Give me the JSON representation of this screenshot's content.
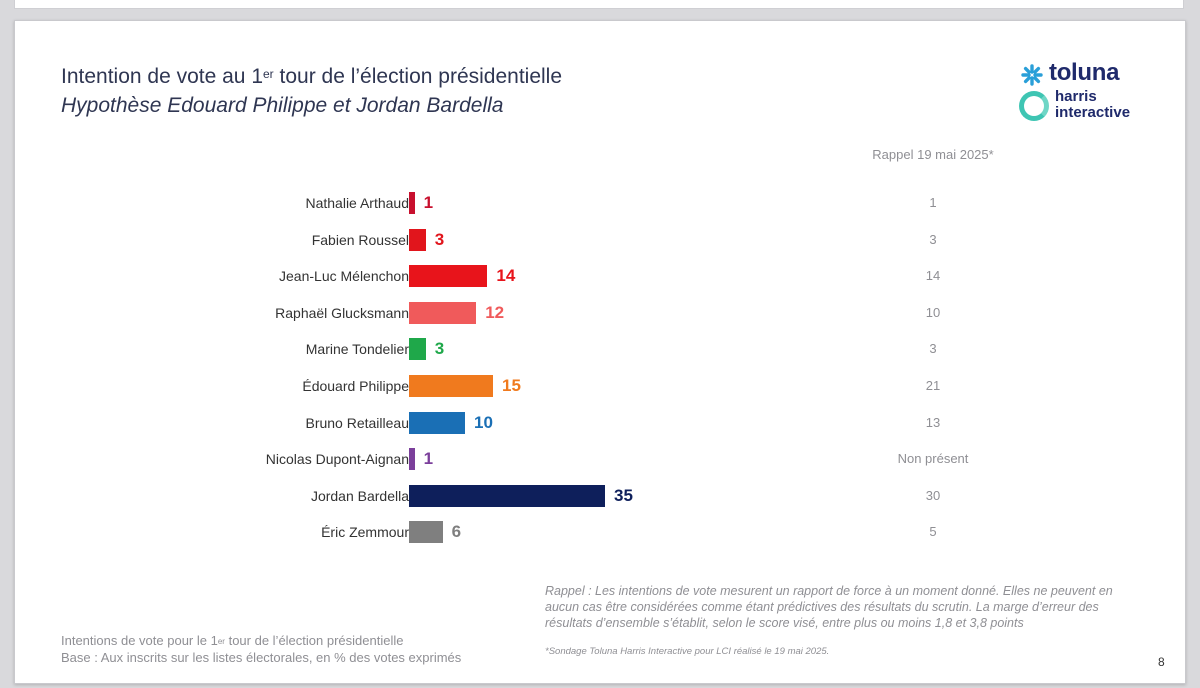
{
  "title": {
    "prefix": "Intention de vote au 1",
    "sup": "er",
    "suffix": " tour de l’élection présidentielle"
  },
  "subtitle": "Hypothèse Edouard Philippe et Jordan Bardella",
  "logo": {
    "toluna": "toluna",
    "harris": "harris",
    "interactive": "interactive"
  },
  "rappel_header": "Rappel 19 mai 2025*",
  "chart_data": {
    "type": "bar",
    "orientation": "horizontal",
    "categories": [
      "Nathalie Arthaud",
      "Fabien Roussel",
      "Jean-Luc Mélenchon",
      "Raphaël Glucksmann",
      "Marine Tondelier",
      "Édouard Philippe",
      "Bruno Retailleau",
      "Nicolas Dupont-Aignan",
      "Jordan Bardella",
      "Éric Zemmour"
    ],
    "values": [
      1,
      3,
      14,
      12,
      3,
      15,
      10,
      1,
      35,
      6
    ],
    "colors": [
      "#c8102e",
      "#e1151c",
      "#e8141b",
      "#f05a5b",
      "#1fa84a",
      "#f07a1e",
      "#1a6fb5",
      "#7b3f9b",
      "#0e1f5b",
      "#7f7f7f"
    ],
    "recall_values": [
      "1",
      "3",
      "14",
      "10",
      "3",
      "21",
      "13",
      "Non présent",
      "30",
      "5"
    ],
    "xlim": [
      0,
      35
    ]
  },
  "note": "Rappel : Les intentions de vote mesurent un rapport de force à un moment donné. Elles ne peuvent en aucun cas être considérées comme étant prédictives des résultats du scrutin. La marge d’erreur des résultats d’ensemble s’établit, selon le score visé, entre plus ou moins 1,8 et 3,8 points",
  "source": "*Sondage Toluna Harris Interactive pour LCI réalisé le 19 mai 2025.",
  "footer": {
    "line1_prefix": "Intentions de vote pour le 1",
    "line1_sup": "er",
    "line1_suffix": " tour de l’élection présidentielle",
    "line2": "Base : Aux inscrits sur les listes électorales, en % des votes exprimés"
  },
  "page_number": "8"
}
